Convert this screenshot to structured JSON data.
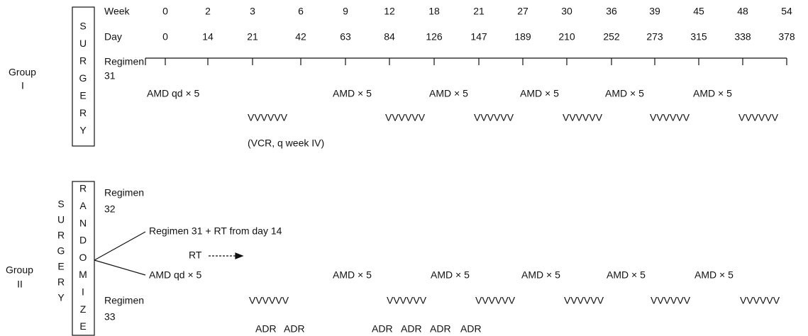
{
  "header": {
    "week_label": "Week",
    "weeks": [
      "0",
      "2",
      "3",
      "6",
      "9",
      "12",
      "18",
      "21",
      "27",
      "30",
      "36",
      "39",
      "45",
      "48",
      "54"
    ],
    "day_label": "Day",
    "days": [
      "0",
      "14",
      "21",
      "42",
      "63",
      "84",
      "126",
      "147",
      "189",
      "210",
      "252",
      "273",
      "315",
      "338",
      "378"
    ]
  },
  "group1": {
    "label": [
      "Group",
      "I"
    ],
    "surgery": [
      "S",
      "U",
      "R",
      "G",
      "E",
      "R",
      "Y"
    ],
    "regimen": [
      "Regimen",
      "31"
    ],
    "amd": [
      "AMD qd × 5",
      "AMD × 5",
      "AMD × 5",
      "AMD × 5",
      "AMD × 5",
      "AMD × 5"
    ],
    "vcr": [
      "VVVVVV",
      "VVVVVV",
      "VVVVVV",
      "VVVVVV",
      "VVVVVV",
      "VVVVVV"
    ],
    "note": "(VCR, q week IV)"
  },
  "group2": {
    "label": [
      "Group",
      "II"
    ],
    "surgery": [
      "S",
      "U",
      "R",
      "G",
      "E",
      "R",
      "Y"
    ],
    "randomize": [
      "R",
      "A",
      "N",
      "D",
      "O",
      "M",
      "I",
      "Z",
      "E"
    ],
    "regimen32": [
      "Regimen",
      "32"
    ],
    "branch": "Regimen 31 + RT from day 14",
    "rt": "RT",
    "amd": [
      "AMD qd × 5",
      "AMD × 5",
      "AMD × 5",
      "AMD × 5",
      "AMD × 5",
      "AMD × 5"
    ],
    "regimen33": [
      "Regimen",
      "33"
    ],
    "vcr": [
      "VVVVVV",
      "VVVVVV",
      "VVVVVV",
      "VVVVVV",
      "VVVVVV",
      "VVVVVV"
    ],
    "adr": [
      "ADR",
      "ADR",
      "ADR",
      "ADR",
      "ADR",
      "ADR"
    ]
  }
}
